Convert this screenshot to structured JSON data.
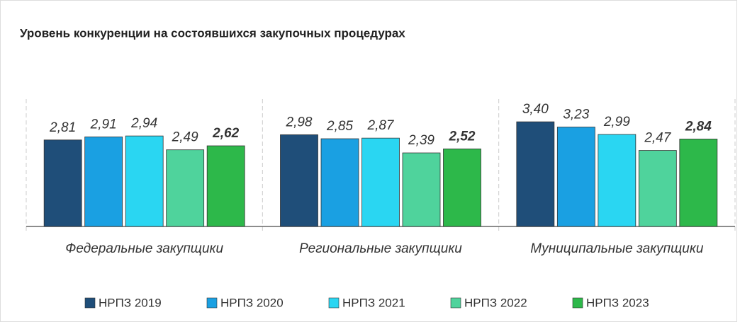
{
  "chart_data": {
    "type": "bar",
    "title": "Уровень конкуренции на состоявшихся закупочных процедурах",
    "categories": [
      "Федеральные закупщики",
      "Региональные закупщики",
      "Муниципальные закупщики"
    ],
    "series": [
      {
        "name": "НРПЗ 2019",
        "color": "#1f4e79",
        "values": [
          2.81,
          2.98,
          3.4
        ],
        "value_labels": [
          "2,81",
          "2,98",
          "3,40"
        ]
      },
      {
        "name": "НРПЗ 2020",
        "color": "#1aa0e2",
        "values": [
          2.91,
          2.85,
          3.23
        ],
        "value_labels": [
          "2,91",
          "2,85",
          "3,23"
        ]
      },
      {
        "name": "НРПЗ 2021",
        "color": "#2ad6f2",
        "values": [
          2.94,
          2.87,
          2.99
        ],
        "value_labels": [
          "2,94",
          "2,87",
          "2,99"
        ]
      },
      {
        "name": "НРПЗ 2022",
        "color": "#4fd39c",
        "values": [
          2.49,
          2.39,
          2.47
        ],
        "value_labels": [
          "2,49",
          "2,39",
          "2,47"
        ]
      },
      {
        "name": "НРПЗ 2023",
        "color": "#2db84a",
        "values": [
          2.62,
          2.52,
          2.84
        ],
        "value_labels": [
          "2,62",
          "2,52",
          "2,84"
        ]
      }
    ],
    "ylim": [
      0,
      4
    ]
  }
}
